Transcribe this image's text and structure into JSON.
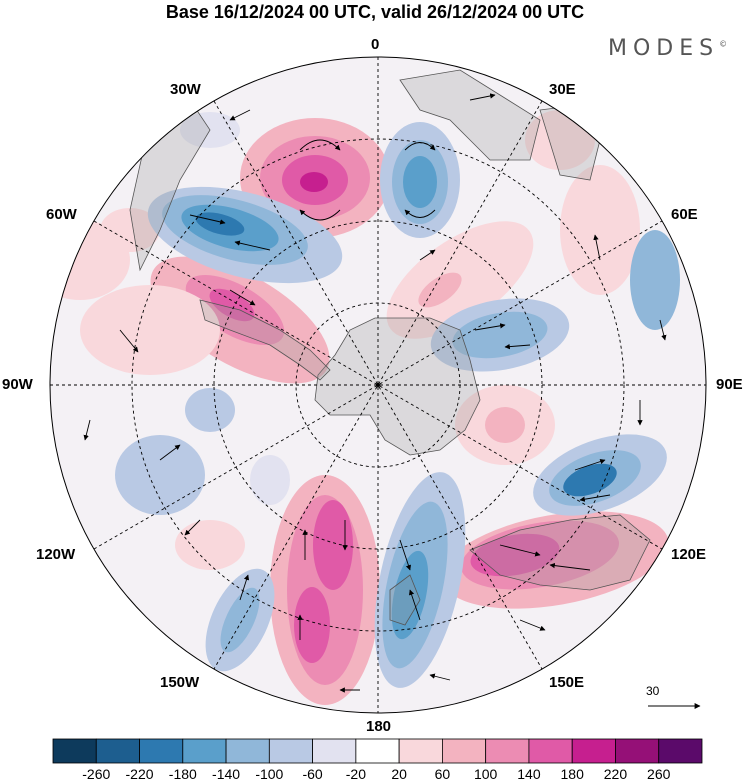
{
  "title": "Base 16/12/2024 00 UTC, valid 26/12/2024 00 UTC",
  "brand": "MODES",
  "brand_mark": "©",
  "longitude_labels": {
    "top": "0",
    "top_right": "30E",
    "right_upper": "60E",
    "right": "90E",
    "right_lower": "120E",
    "bottom_right": "150E",
    "bottom": "180",
    "bottom_left": "150W",
    "left_lower": "120W",
    "left": "90W",
    "left_upper": "60W",
    "top_left": "30W"
  },
  "reference_vector": "30",
  "colorbar": {
    "colors": [
      "#0d3a5c",
      "#1d5e8f",
      "#2d79b0",
      "#5a9fcb",
      "#90b7d9",
      "#b9c9e4",
      "#e2e2f0",
      "#ffffff",
      "#f9d8dc",
      "#f3b3c0",
      "#ec8cb3",
      "#e05aa7",
      "#c61f8f",
      "#951077",
      "#5b0a6a"
    ],
    "labels": [
      "-260",
      "-220",
      "-180",
      "-140",
      "-100",
      "-60",
      "-20",
      "20",
      "60",
      "100",
      "140",
      "180",
      "220",
      "260"
    ]
  }
}
